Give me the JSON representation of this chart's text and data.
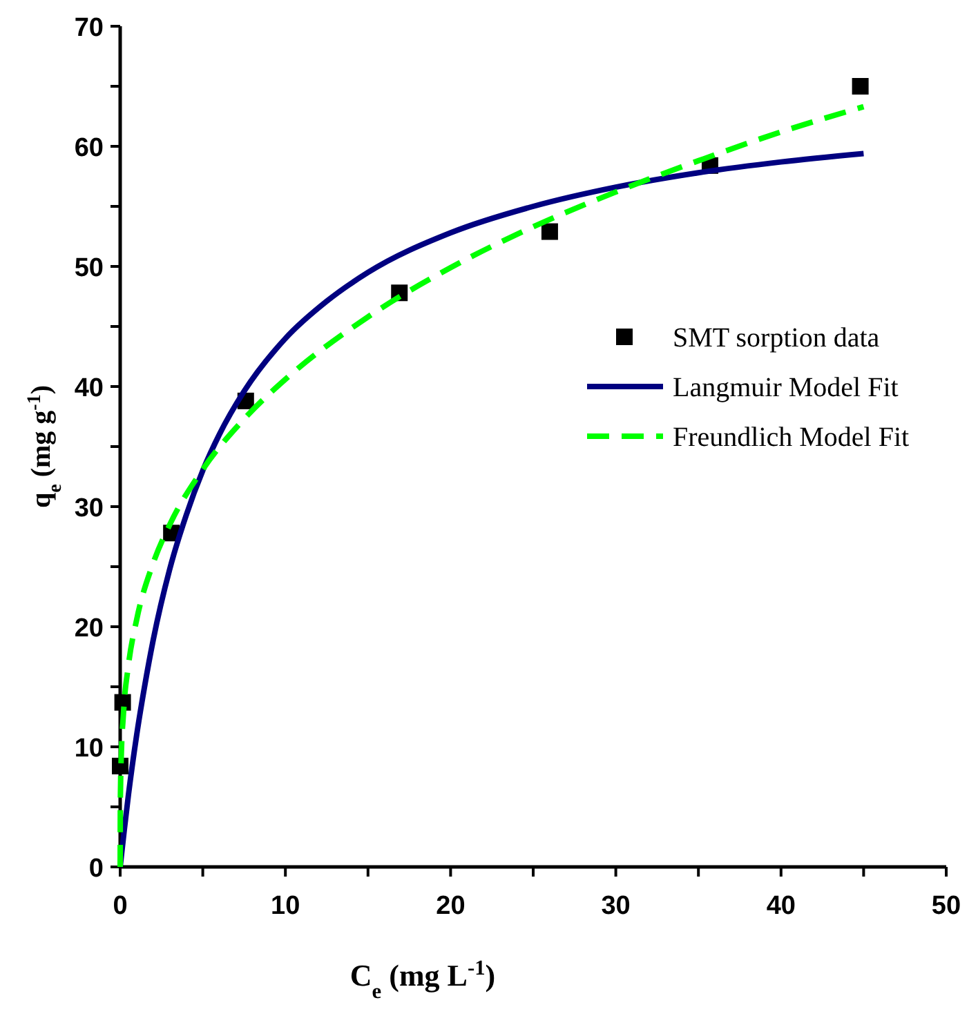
{
  "chart_data": {
    "type": "scatter",
    "xlabel": "C$_{e}$ (mg L$^{-1}$)",
    "ylabel": "q$_{e}$ (mg g$^{-1}$)",
    "xlim": [
      0,
      50
    ],
    "ylim": [
      0,
      70
    ],
    "xticks": [
      0,
      {
        "value": 5,
        "label": null
      },
      10,
      {
        "value": 15,
        "label": null
      },
      20,
      {
        "value": 25,
        "label": null
      },
      30,
      {
        "value": 35,
        "label": null
      },
      40,
      {
        "value": 45,
        "label": null
      },
      50
    ],
    "yticks": [
      0,
      {
        "value": 5,
        "label": null
      },
      10,
      {
        "value": 15,
        "label": null
      },
      20,
      {
        "value": 25,
        "label": null
      },
      30,
      {
        "value": 35,
        "label": null
      },
      40,
      {
        "value": 45,
        "label": null
      },
      50,
      {
        "value": 55,
        "label": null
      },
      60,
      {
        "value": 65,
        "label": null
      },
      70
    ],
    "grid": false,
    "legend": "right",
    "series": [
      {
        "name": "SMT sorption data",
        "marker": "square",
        "color": "#000000",
        "x": [
          0,
          0.15,
          3.1,
          7.6,
          16.9,
          26.0,
          35.7,
          44.8
        ],
        "values": [
          8.4,
          13.7,
          27.8,
          38.8,
          47.8,
          52.9,
          58.4,
          65.0
        ]
      },
      {
        "name": "Langmuir Model Fit",
        "type": "line",
        "line_style": "solid",
        "color": "#000080",
        "x": [
          0,
          0.25,
          0.5,
          1,
          1.5,
          2,
          3,
          4,
          5,
          6,
          7.5,
          10,
          12.5,
          15,
          20,
          25,
          30,
          35,
          40,
          45
        ],
        "values": [
          0,
          3.1,
          6.0,
          11.0,
          15.2,
          18.9,
          24.8,
          29.3,
          33.0,
          36.0,
          39.6,
          44.0,
          47.1,
          49.5,
          52.8,
          55.0,
          56.6,
          57.8,
          58.7,
          59.4
        ]
      },
      {
        "name": "Freundlich Model Fit",
        "type": "line",
        "line_style": "dashed",
        "color": "#00ff00",
        "x": [
          0,
          0.01,
          0.05,
          0.2,
          0.5,
          1,
          2,
          3,
          5,
          7.5,
          10,
          15,
          20,
          25,
          30,
          35,
          40,
          45
        ],
        "values": [
          0,
          5.3,
          8.5,
          12.8,
          16.8,
          20.6,
          25.3,
          28.5,
          33.1,
          37.3,
          40.6,
          45.8,
          49.9,
          53.3,
          56.2,
          58.8,
          61.2,
          63.3
        ]
      }
    ]
  }
}
